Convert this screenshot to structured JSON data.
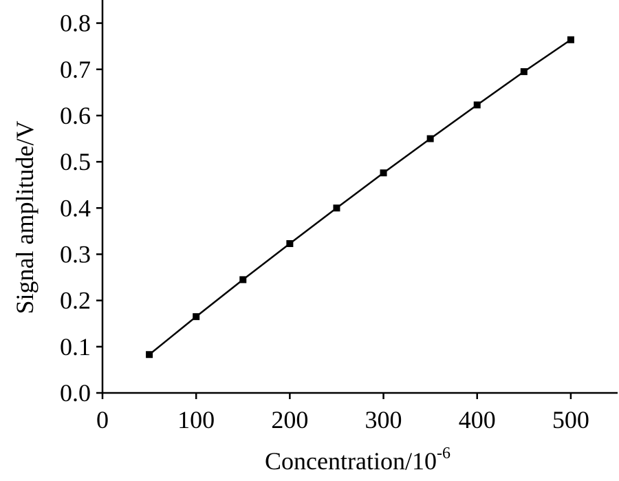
{
  "chart_data": {
    "type": "line",
    "xlabel_main": "Concentration/10",
    "xlabel_sup": "-6",
    "ylabel": "Signal amplitude/V",
    "xlim": [
      0,
      550
    ],
    "ylim": [
      0,
      0.85
    ],
    "x_ticks": [
      0,
      100,
      200,
      300,
      400,
      500
    ],
    "x_tick_labels": [
      "0",
      "100",
      "200",
      "300",
      "400",
      "500"
    ],
    "y_ticks": [
      0,
      0.1,
      0.2,
      0.3,
      0.4,
      0.5,
      0.6,
      0.7,
      0.8
    ],
    "y_tick_labels": [
      "0.0",
      "0.1",
      "0.2",
      "0.3",
      "0.4",
      "0.5",
      "0.6",
      "0.7",
      "0.8"
    ],
    "grid": false,
    "marker": "square",
    "series": [
      {
        "x": [
          50,
          100,
          150,
          200,
          250,
          300,
          350,
          400,
          450,
          500
        ],
        "y": [
          0.083,
          0.165,
          0.245,
          0.323,
          0.4,
          0.476,
          0.55,
          0.623,
          0.695,
          0.764
        ]
      }
    ]
  }
}
